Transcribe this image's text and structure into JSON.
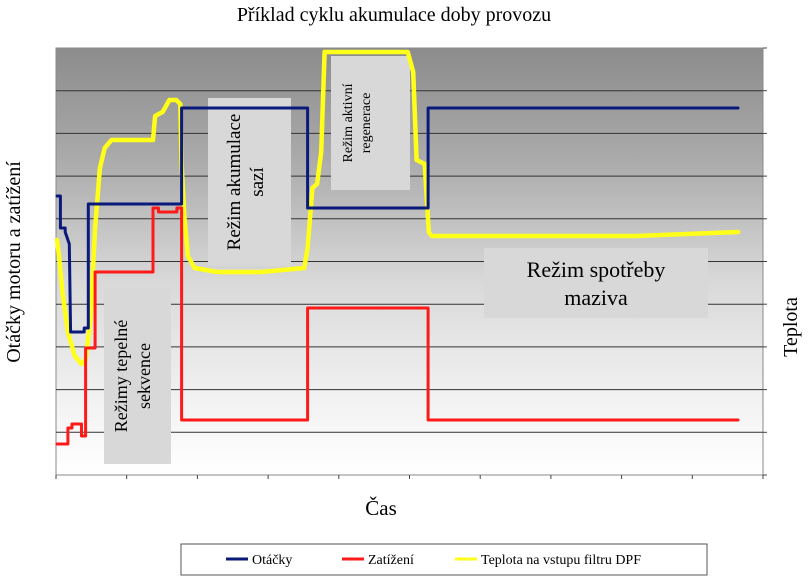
{
  "chart_data": {
    "type": "line",
    "title": "Příklad cyklu akumulace doby provozu",
    "xlabel": "Čas",
    "ylabel_left": "Otáčky motoru a zatížení",
    "ylabel_right": "Teplota",
    "xlim": [
      0,
      100
    ],
    "ylim": [
      0,
      100
    ],
    "grid": true,
    "legend_position": "bottom",
    "colors": {
      "otacky": "#0a1a7a",
      "zatizeni": "#ff1a1a",
      "teplota": "#ffff1a"
    },
    "series": [
      {
        "name": "Otáčky",
        "color": "#0a1a7a",
        "x": [
          0,
          0.5,
          0.5,
          1.2,
          1.2,
          1.8,
          2.0,
          4.0,
          4.0,
          4.6,
          4.6,
          18.3,
          18.3,
          36.8,
          36.8,
          54.5,
          54.5,
          100
        ],
        "y": [
          64,
          64,
          56,
          56,
          55,
          52,
          30,
          30,
          31,
          31,
          62,
          62,
          86,
          86,
          61,
          61,
          86,
          86
        ]
      },
      {
        "name": "Zatížení",
        "color": "#ff1a1a",
        "x": [
          0,
          1.6,
          1.6,
          2.2,
          2.2,
          3.6,
          3.6,
          4.2,
          4.2,
          5.6,
          5.6,
          14.1,
          14.1,
          14.9,
          14.9,
          17.6,
          17.6,
          18.3,
          18.3,
          36.8,
          36.8,
          54.5,
          54.5,
          100
        ],
        "y": [
          2,
          2,
          6,
          6,
          7,
          7,
          4,
          4,
          26,
          26,
          45,
          45,
          61,
          61,
          60,
          60,
          61,
          61,
          8,
          8,
          36,
          36,
          8,
          8
        ]
      },
      {
        "name": "Teplota na vstupu filtru DPF",
        "color": "#ffff1a",
        "x": [
          0,
          0.3,
          0.8,
          1.6,
          2.6,
          3.6,
          4.2,
          4.9,
          5.6,
          6.3,
          7.0,
          8.0,
          9.5,
          13.8,
          14.1,
          14.4,
          15.5,
          16.5,
          17.5,
          18.1,
          18.3,
          18.7,
          19.2,
          20.2,
          23.5,
          30.0,
          36.3,
          36.8,
          37.5,
          38.2,
          38.8,
          39.3,
          51.5,
          52.3,
          52.8,
          54.0,
          54.6,
          55.0,
          70.0,
          85.0,
          100
        ],
        "y": [
          53,
          49,
          40,
          30,
          24,
          22,
          23,
          33,
          56,
          71,
          76,
          78,
          78,
          78,
          78,
          84,
          85,
          88,
          88,
          87,
          72,
          59,
          49,
          46,
          45,
          45,
          46,
          51,
          66,
          67,
          75,
          100,
          100,
          95,
          73,
          72,
          55,
          54,
          54,
          54,
          55
        ]
      }
    ],
    "annotations": {
      "akumulace_line1": "Režim akumulace",
      "akumulace_line2": "sazí",
      "regenerace_line1": "Režim aktivní",
      "regenerace_line2": "regenerace",
      "sekvence_line1": "Režimy tepelné",
      "sekvence_line2": "sekvence",
      "spotreba_line1": "Režim spotřeby",
      "spotreba_line2": "maziva"
    },
    "legend": [
      "Otáčky",
      "Zatížení",
      "Teplota na vstupu filtru DPF"
    ]
  }
}
